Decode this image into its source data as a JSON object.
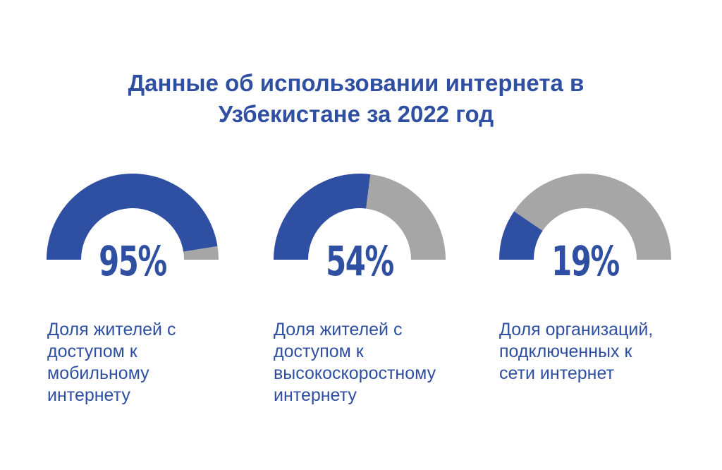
{
  "title_line1": "Данные об использовании интернета в",
  "title_line2": "Узбекистане за 2022 год",
  "colors": {
    "accent": "#2f4fa2",
    "remainder": "#a6a6a6"
  },
  "chart_data": [
    {
      "type": "gauge",
      "value": 95,
      "max": 100,
      "value_label": "95%",
      "label": [
        "Доля жителей с",
        "доступом к",
        "мобильному",
        "интернету"
      ]
    },
    {
      "type": "gauge",
      "value": 54,
      "max": 100,
      "value_label": "54%",
      "label": [
        "Доля жителей с",
        "доступом к",
        "высокоскоростному",
        "интернету"
      ]
    },
    {
      "type": "gauge",
      "value": 19,
      "max": 100,
      "value_label": "19%",
      "label": [
        "Доля организаций,",
        "подключенных к",
        "сети интернет"
      ]
    }
  ]
}
